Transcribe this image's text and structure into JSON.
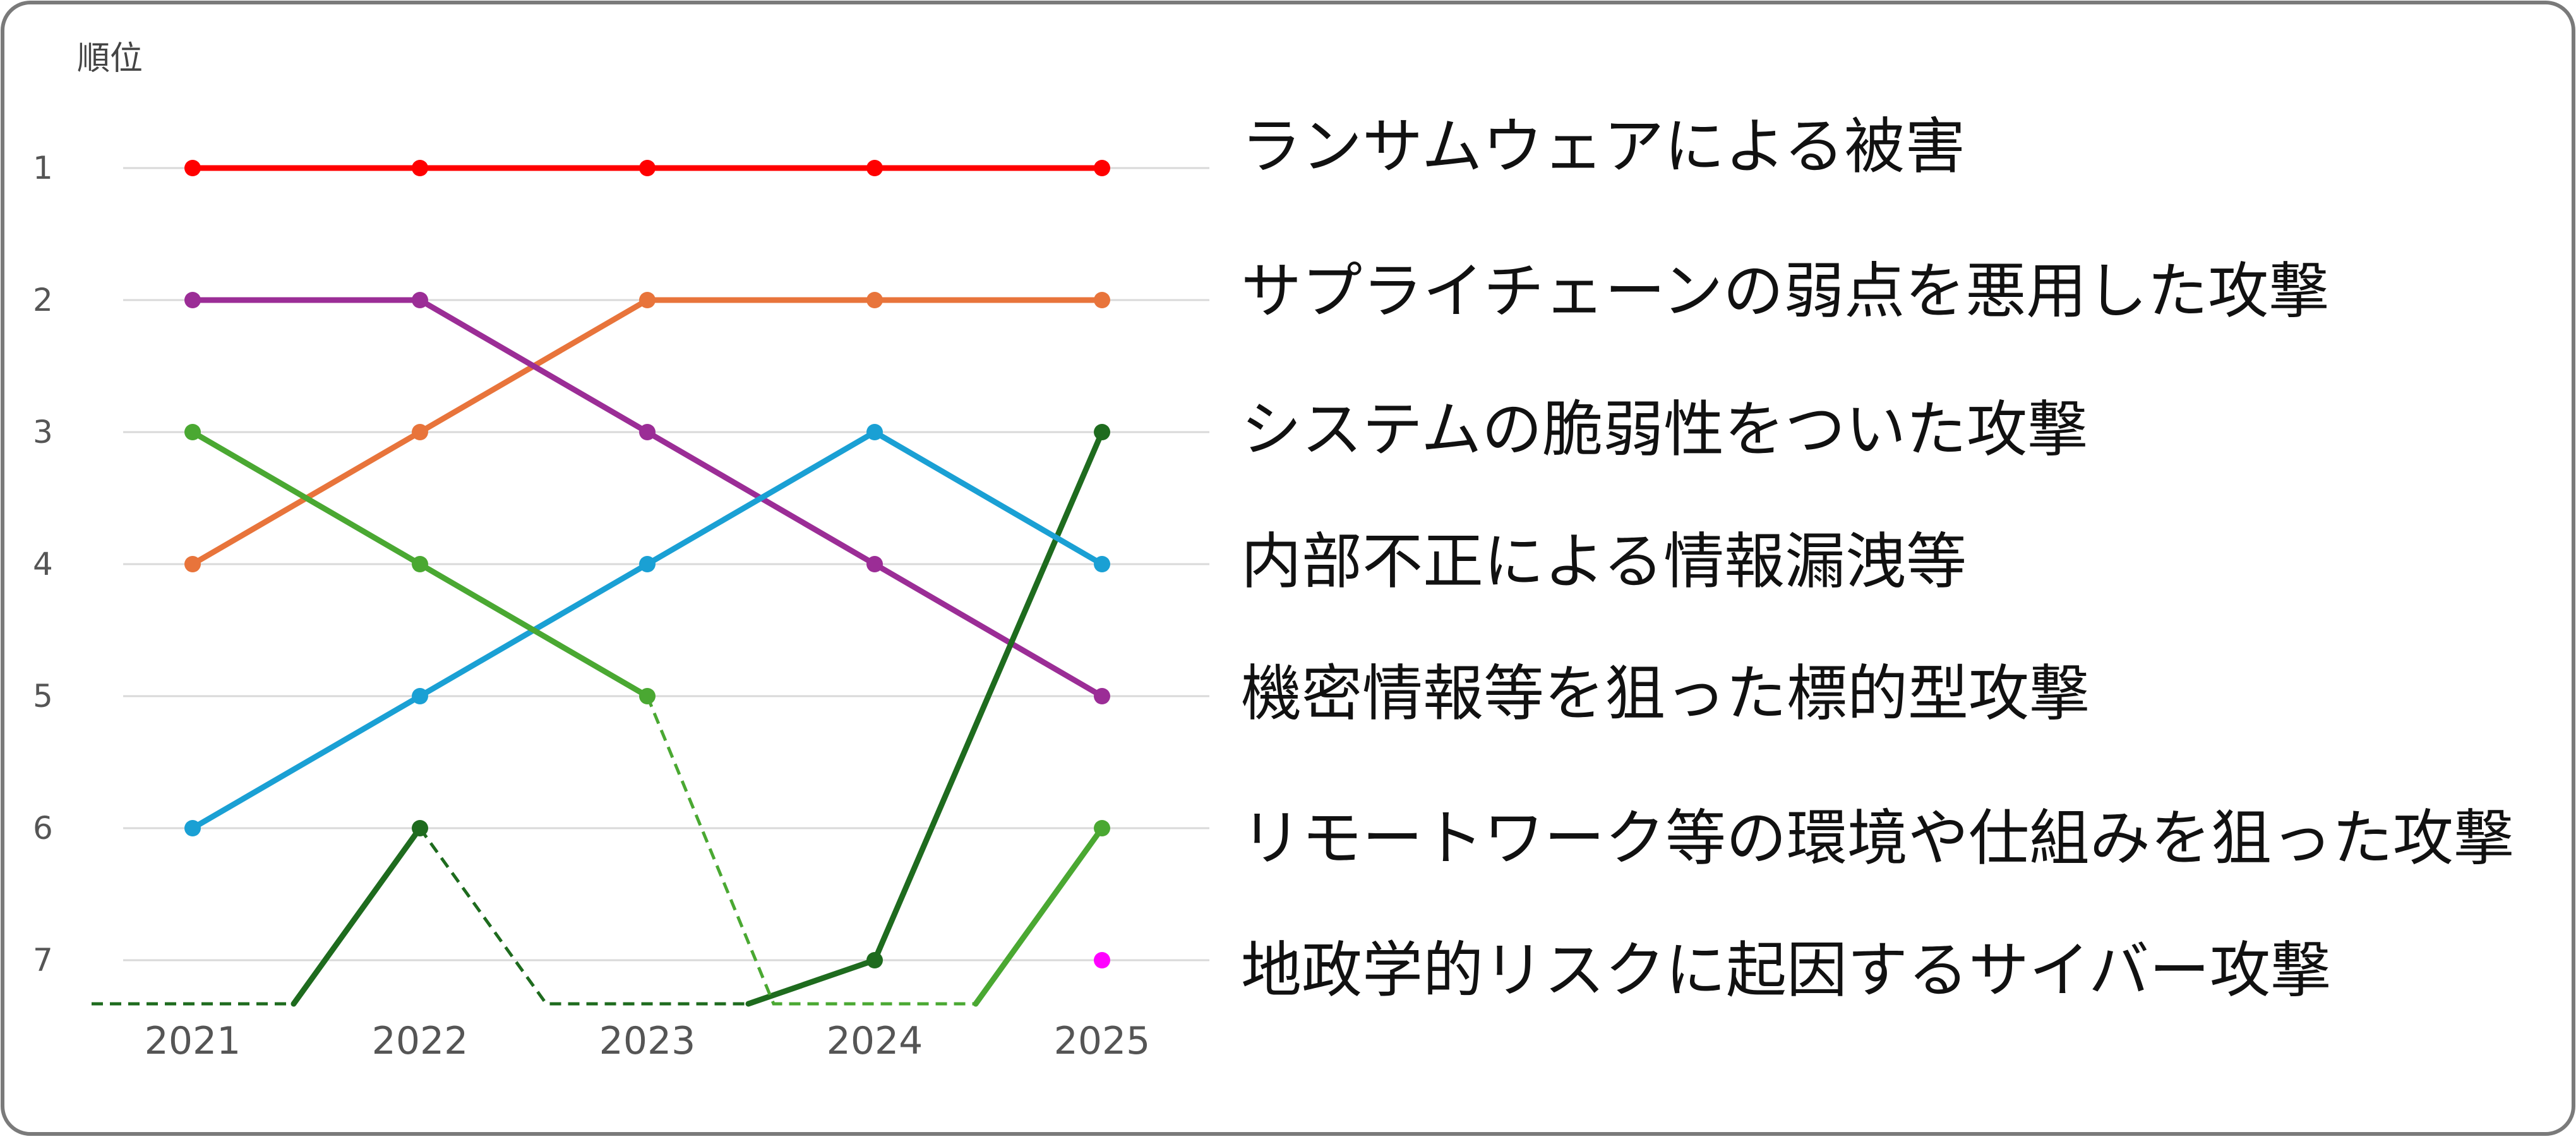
{
  "chart_data": {
    "type": "line",
    "title": "",
    "xlabel": "",
    "ylabel": "順位",
    "x": [
      "2021",
      "2022",
      "2023",
      "2024",
      "2025"
    ],
    "y_ticks": [
      1,
      2,
      3,
      4,
      5,
      6,
      7
    ],
    "ylim": [
      1,
      7
    ],
    "y_inverted": true,
    "grid": true,
    "legend_position": "right",
    "series": [
      {
        "name": "ランサムウェアによる被害",
        "color": "#ff0000",
        "values": [
          1,
          1,
          1,
          1,
          1
        ],
        "below_top7": []
      },
      {
        "name": "サプライチェーンの弱点を悪用した攻撃",
        "color": "#e8743b",
        "values": [
          4,
          3,
          2,
          2,
          2
        ],
        "below_top7": []
      },
      {
        "name": "システムの脆弱性をついた攻撃",
        "color": "#1e6b1e",
        "values": [
          null,
          6,
          null,
          7,
          3
        ],
        "below_top7": [
          2021,
          2023
        ]
      },
      {
        "name": "内部不正による情報漏洩等",
        "color": "#1aa0d4",
        "values": [
          6,
          5,
          4,
          3,
          4
        ],
        "below_top7": []
      },
      {
        "name": "機密情報等を狙った標的型攻撃",
        "color": "#9b2d96",
        "values": [
          2,
          2,
          3,
          4,
          5
        ],
        "below_top7": []
      },
      {
        "name": "リモートワーク等の環境や仕組みを狙った攻撃",
        "color": "#4aa832",
        "values": [
          3,
          4,
          5,
          null,
          6
        ],
        "below_top7": [
          2024
        ]
      },
      {
        "name": "地政学的リスクに起因するサイバー攻撃",
        "color": "#ff00ff",
        "values": [
          null,
          null,
          null,
          null,
          7
        ],
        "below_top7": []
      }
    ]
  }
}
